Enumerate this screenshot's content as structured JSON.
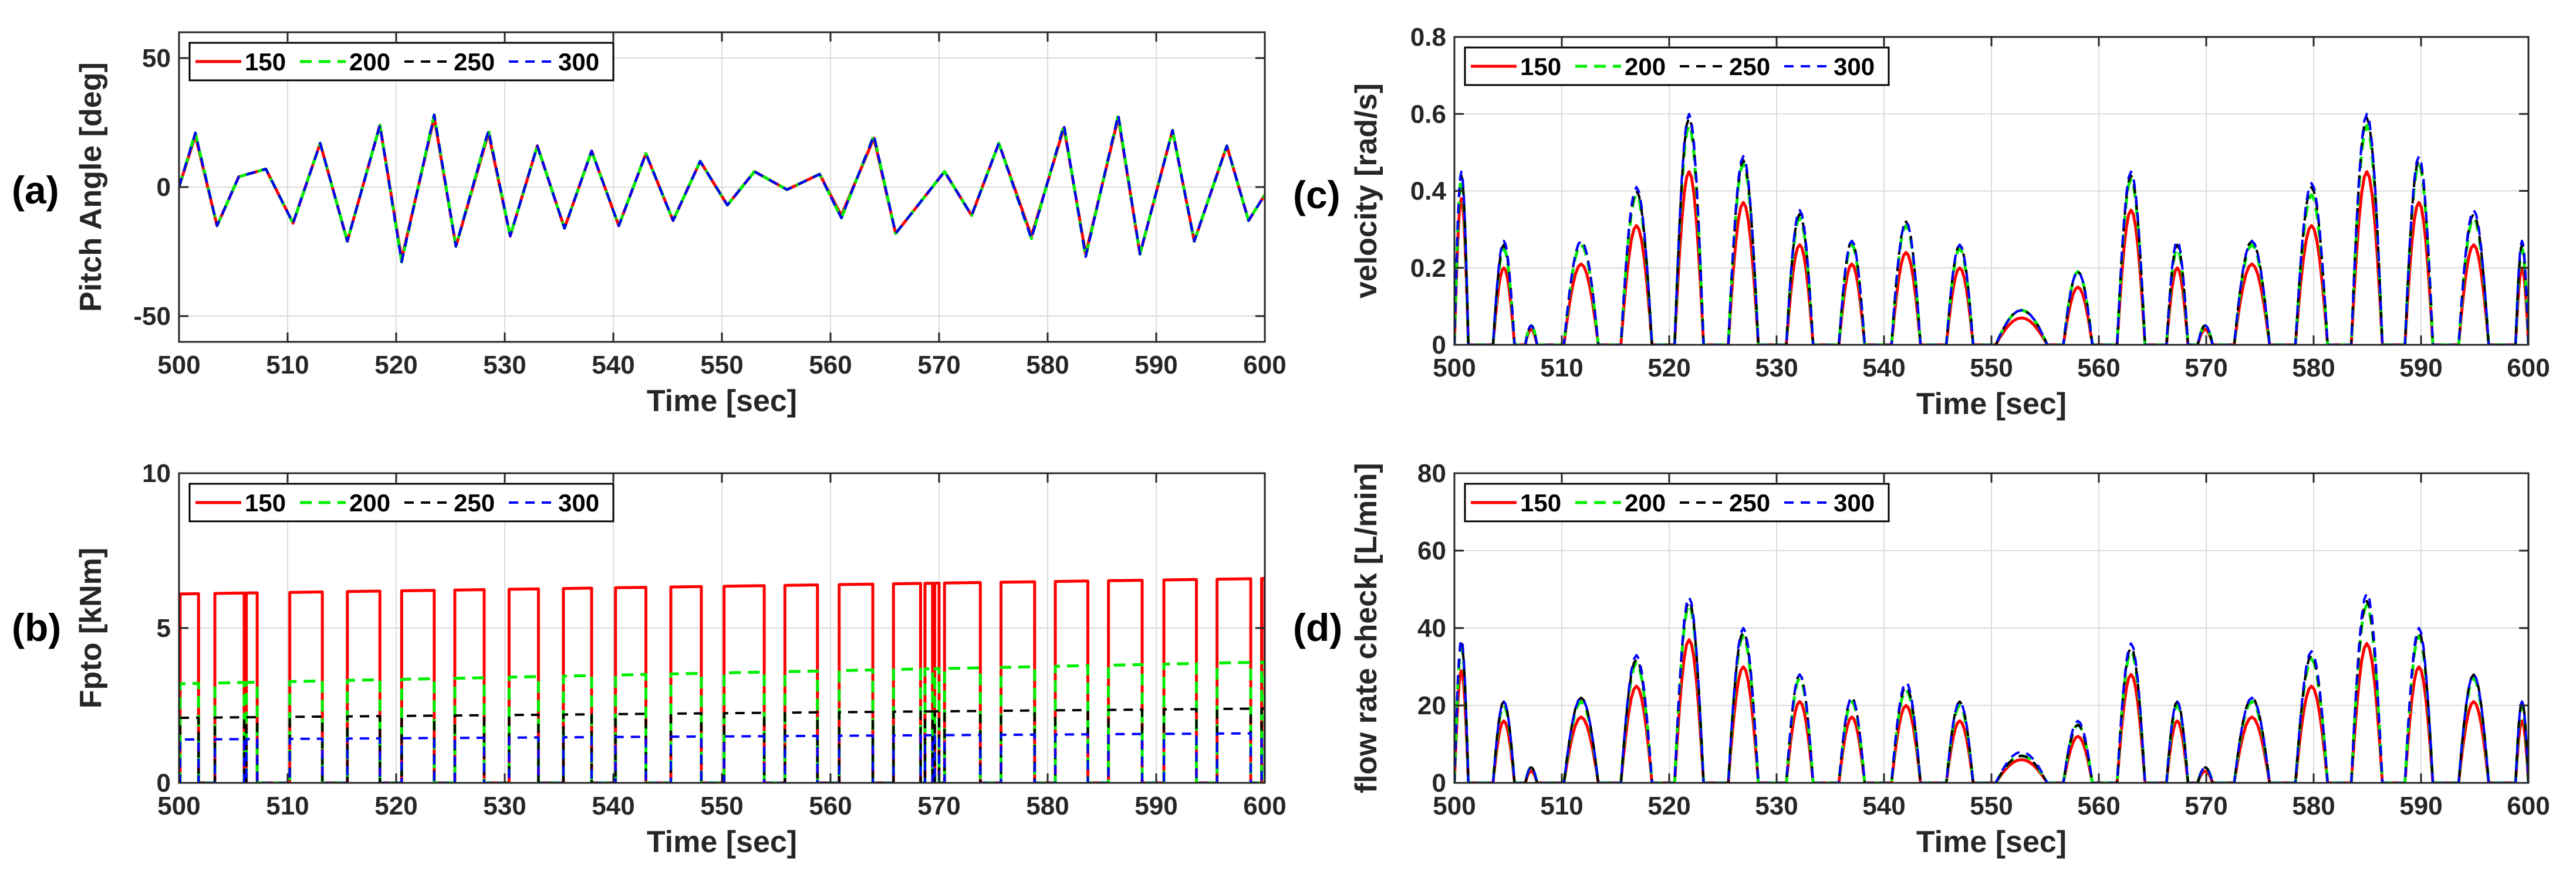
{
  "figure": {
    "legend_labels": [
      "150",
      "200",
      "250",
      "300"
    ],
    "series_colors": [
      "#ff0000",
      "#00ee00",
      "#000000",
      "#0000ff"
    ]
  },
  "chart_data": [
    {
      "id": "a",
      "panel_label": "(a)",
      "type": "line",
      "title": "",
      "xlabel": "Time [sec]",
      "ylabel": "Pitch Angle [deg]",
      "xlim": [
        500,
        600
      ],
      "ylim": [
        -60,
        60
      ],
      "xticks": [
        500,
        510,
        520,
        530,
        540,
        550,
        560,
        570,
        580,
        590,
        600
      ],
      "yticks": [
        -50,
        0,
        50
      ],
      "grid": true,
      "legend_position": "top-left",
      "x": [
        500,
        501.5,
        503.5,
        505.5,
        508,
        510.5,
        513,
        515.5,
        518.5,
        520.5,
        523.5,
        525.5,
        528.5,
        530.5,
        533,
        535.5,
        538,
        540.5,
        543,
        545.5,
        548,
        550.5,
        553,
        556,
        559,
        561,
        564,
        566,
        570.5,
        573,
        575.5,
        578.5,
        581.5,
        583.5,
        586.5,
        588.5,
        591.5,
        593.5,
        596.5,
        598.5,
        600
      ],
      "series": [
        {
          "name": "150",
          "values": [
            0,
            20,
            -15,
            4,
            7,
            -14,
            17,
            -21,
            24,
            -28,
            27,
            -23,
            21,
            -19,
            16,
            -16,
            14,
            -15,
            13,
            -13,
            10,
            -7,
            6,
            -1,
            5,
            -11,
            19,
            -18,
            6,
            -11,
            17,
            -19,
            23,
            -26,
            27,
            -26,
            22,
            -21,
            16,
            -13,
            -3
          ]
        },
        {
          "name": "200",
          "values": [
            0,
            21,
            -15,
            4,
            7,
            -14,
            17,
            -21,
            24,
            -29,
            28,
            -23,
            22,
            -19,
            16,
            -16,
            14,
            -15,
            13,
            -13,
            10,
            -7,
            6,
            -1,
            5,
            -12,
            20,
            -18,
            6,
            -11,
            17,
            -20,
            24,
            -27,
            28,
            -26,
            22,
            -21,
            16,
            -13,
            -3
          ]
        },
        {
          "name": "250",
          "values": [
            0,
            21,
            -15,
            4,
            7,
            -14,
            17,
            -21,
            24,
            -29,
            28,
            -23,
            22,
            -19,
            16,
            -16,
            14,
            -15,
            13,
            -13,
            10,
            -7,
            6,
            -1,
            5,
            -12,
            20,
            -18,
            6,
            -11,
            17,
            -20,
            24,
            -27,
            28,
            -26,
            22,
            -21,
            16,
            -13,
            -3
          ]
        },
        {
          "name": "300",
          "values": [
            0,
            21,
            -15,
            4,
            7,
            -14,
            17,
            -21,
            24,
            -29,
            28,
            -23,
            22,
            -19,
            16,
            -16,
            14,
            -15,
            13,
            -13,
            10,
            -7,
            6,
            -1,
            5,
            -12,
            20,
            -18,
            6,
            -11,
            17,
            -20,
            24,
            -27,
            28,
            -26,
            22,
            -21,
            16,
            -13,
            -3
          ]
        }
      ]
    },
    {
      "id": "b",
      "panel_label": "(b)",
      "type": "line",
      "title": "",
      "xlabel": "Time [sec]",
      "ylabel": "Fpto [kNm]",
      "xlim": [
        500,
        600
      ],
      "ylim": [
        0,
        10
      ],
      "xticks": [
        500,
        510,
        520,
        530,
        540,
        550,
        560,
        570,
        580,
        590,
        600
      ],
      "yticks": [
        0,
        5,
        10
      ],
      "grid": true,
      "legend_position": "top-left",
      "pulse_windows": [
        [
          500.1,
          501.8
        ],
        [
          503.3,
          506.0
        ],
        [
          506.2,
          507.2
        ],
        [
          510.2,
          513.2
        ],
        [
          515.5,
          518.5
        ],
        [
          520.5,
          523.5
        ],
        [
          525.4,
          528.1
        ],
        [
          530.4,
          533.1
        ],
        [
          535.4,
          538.0
        ],
        [
          540.2,
          543.0
        ],
        [
          545.3,
          548.1
        ],
        [
          550.2,
          553.9
        ],
        [
          555.8,
          558.8
        ],
        [
          560.8,
          563.9
        ],
        [
          565.8,
          568.3
        ],
        [
          568.7,
          569.4
        ],
        [
          569.6,
          570.0
        ],
        [
          570.5,
          573.8
        ],
        [
          575.7,
          578.8
        ],
        [
          580.7,
          583.7
        ],
        [
          585.6,
          588.7
        ],
        [
          590.7,
          593.7
        ],
        [
          595.6,
          598.7
        ],
        [
          599.7,
          600.0
        ]
      ],
      "series": [
        {
          "name": "150",
          "level_start": 6.1,
          "level_end": 6.6
        },
        {
          "name": "200",
          "level_start": 3.2,
          "level_end": 3.9
        },
        {
          "name": "250",
          "level_start": 2.1,
          "level_end": 2.4
        },
        {
          "name": "300",
          "level_start": 1.4,
          "level_end": 1.6
        }
      ]
    },
    {
      "id": "c",
      "panel_label": "(c)",
      "type": "line",
      "title": "",
      "xlabel": "Time [sec]",
      "ylabel": "velocity [rad/s]",
      "xlim": [
        500,
        600
      ],
      "ylim": [
        0,
        0.8
      ],
      "xticks": [
        500,
        510,
        520,
        530,
        540,
        550,
        560,
        570,
        580,
        590,
        600
      ],
      "yticks": [
        0,
        0.2,
        0.4,
        0.6,
        0.8
      ],
      "grid": true,
      "legend_position": "top-left",
      "peak_windows": [
        [
          500.0,
          501.3
        ],
        [
          503.6,
          505.6
        ],
        [
          506.6,
          507.7
        ],
        [
          510.2,
          513.4
        ],
        [
          515.5,
          518.4
        ],
        [
          520.5,
          523.2
        ],
        [
          525.5,
          528.3
        ],
        [
          530.9,
          533.4
        ],
        [
          535.8,
          538.2
        ],
        [
          540.7,
          543.4
        ],
        [
          545.8,
          548.3
        ],
        [
          550.4,
          555.2
        ],
        [
          556.7,
          559.4
        ],
        [
          561.7,
          564.3
        ],
        [
          566.3,
          568.3
        ],
        [
          569.2,
          570.6
        ],
        [
          572.6,
          575.9
        ],
        [
          578.3,
          581.3
        ],
        [
          583.5,
          586.4
        ],
        [
          588.5,
          591.1
        ],
        [
          593.5,
          596.3
        ],
        [
          598.8,
          600.0
        ]
      ],
      "series": [
        {
          "name": "150",
          "values": [
            0.38,
            0.2,
            0.04,
            0.21,
            0.31,
            0.45,
            0.37,
            0.26,
            0.21,
            0.24,
            0.2,
            0.07,
            0.15,
            0.35,
            0.2,
            0.04,
            0.21,
            0.31,
            0.45,
            0.37,
            0.26,
            0.2
          ]
        },
        {
          "name": "200",
          "values": [
            0.43,
            0.25,
            0.05,
            0.26,
            0.39,
            0.57,
            0.47,
            0.33,
            0.26,
            0.31,
            0.25,
            0.09,
            0.19,
            0.43,
            0.25,
            0.05,
            0.26,
            0.39,
            0.57,
            0.47,
            0.33,
            0.25
          ]
        },
        {
          "name": "250",
          "values": [
            0.44,
            0.26,
            0.05,
            0.27,
            0.4,
            0.59,
            0.48,
            0.34,
            0.27,
            0.32,
            0.26,
            0.09,
            0.19,
            0.44,
            0.26,
            0.05,
            0.27,
            0.41,
            0.59,
            0.48,
            0.34,
            0.26
          ]
        },
        {
          "name": "300",
          "values": [
            0.45,
            0.27,
            0.05,
            0.27,
            0.41,
            0.6,
            0.49,
            0.35,
            0.27,
            0.32,
            0.26,
            0.09,
            0.19,
            0.45,
            0.27,
            0.05,
            0.27,
            0.42,
            0.6,
            0.49,
            0.35,
            0.27
          ]
        }
      ]
    },
    {
      "id": "d",
      "panel_label": "(d)",
      "type": "line",
      "title": "",
      "xlabel": "Time [sec]",
      "ylabel": "flow rate check [L/min]",
      "xlim": [
        500,
        600
      ],
      "ylim": [
        0,
        80
      ],
      "xticks": [
        500,
        510,
        520,
        530,
        540,
        550,
        560,
        570,
        580,
        590,
        600
      ],
      "yticks": [
        0,
        20,
        40,
        60,
        80
      ],
      "grid": true,
      "legend_position": "top-left",
      "peak_windows": [
        [
          500.0,
          501.3
        ],
        [
          503.6,
          505.6
        ],
        [
          506.6,
          507.7
        ],
        [
          510.2,
          513.4
        ],
        [
          515.5,
          518.4
        ],
        [
          520.5,
          523.2
        ],
        [
          525.5,
          528.3
        ],
        [
          530.9,
          533.4
        ],
        [
          535.8,
          538.2
        ],
        [
          540.7,
          543.4
        ],
        [
          545.8,
          548.3
        ],
        [
          550.4,
          555.2
        ],
        [
          556.7,
          559.4
        ],
        [
          561.7,
          564.3
        ],
        [
          566.3,
          568.3
        ],
        [
          569.2,
          570.6
        ],
        [
          572.6,
          575.9
        ],
        [
          578.3,
          581.3
        ],
        [
          583.5,
          586.4
        ],
        [
          588.5,
          591.1
        ],
        [
          593.5,
          596.3
        ],
        [
          598.8,
          600.0
        ]
      ],
      "series": [
        {
          "name": "150",
          "values": [
            29,
            16,
            3,
            17,
            25,
            37,
            30,
            21,
            17,
            20,
            16,
            6,
            12,
            28,
            16,
            3,
            17,
            25,
            36,
            30,
            21,
            16
          ]
        },
        {
          "name": "200",
          "values": [
            35,
            20,
            4,
            21,
            31,
            46,
            38,
            27,
            21,
            24,
            20,
            7,
            15,
            34,
            20,
            4,
            21,
            32,
            46,
            38,
            27,
            20
          ]
        },
        {
          "name": "250",
          "values": [
            36,
            21,
            4,
            22,
            32,
            47,
            39,
            28,
            22,
            25,
            21,
            7,
            15,
            35,
            21,
            4,
            22,
            33,
            47,
            39,
            28,
            21
          ]
        },
        {
          "name": "300",
          "values": [
            37,
            21,
            4,
            22,
            33,
            48,
            40,
            28,
            22,
            26,
            21,
            8,
            16,
            36,
            21,
            4,
            22,
            34,
            49,
            40,
            28,
            21
          ]
        }
      ]
    }
  ]
}
